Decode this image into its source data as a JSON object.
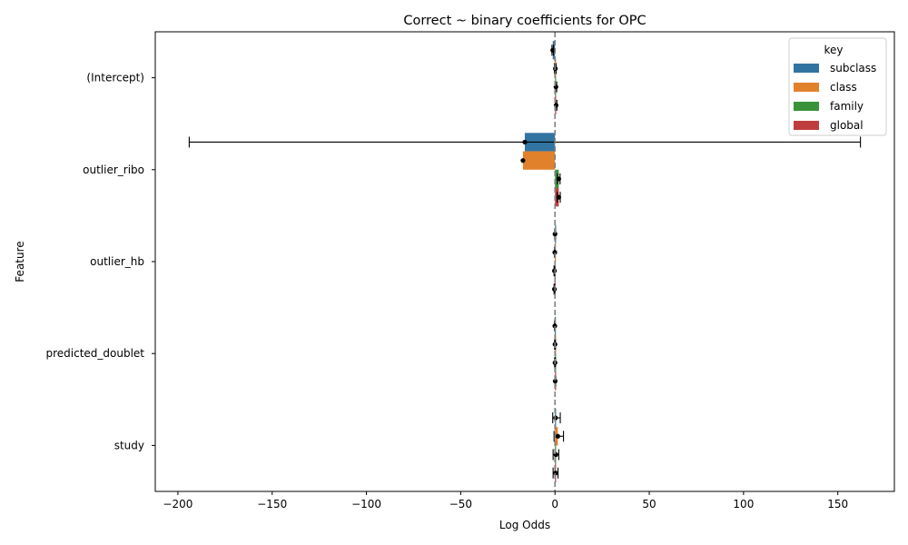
{
  "chart_data": {
    "type": "bar",
    "orientation": "horizontal",
    "title": "Correct ~ binary coefficients for OPC",
    "xlabel": "Log Odds",
    "ylabel": "Feature",
    "xlim": [
      -212,
      180
    ],
    "xticks": [
      -200,
      -150,
      -100,
      -50,
      0,
      50,
      100,
      150
    ],
    "xtick_labels": [
      "−200",
      "−150",
      "−100",
      "−50",
      "0",
      "50",
      "100",
      "150"
    ],
    "categories": [
      "(Intercept)",
      "outlier_ribo",
      "outlier_hb",
      "predicted_doublet",
      "study"
    ],
    "zero_line": {
      "x": 0,
      "style": "dashed",
      "color": "#808080"
    },
    "legend": {
      "title": "key",
      "position": "top-right"
    },
    "series": [
      {
        "name": "subclass",
        "color": "#3274a1",
        "values": [
          -1.2,
          -16,
          0,
          -0.1,
          0.3
        ],
        "ci_low": [
          -1.6,
          -194,
          -0.2,
          -0.3,
          -1.2
        ],
        "ci_high": [
          -0.8,
          162,
          0.2,
          0.1,
          2.8
        ]
      },
      {
        "name": "class",
        "color": "#e1812c",
        "values": [
          0.2,
          -17,
          -0.1,
          0,
          1.5
        ],
        "ci_low": [
          -0.3,
          -17,
          -0.3,
          -0.2,
          -0.5
        ],
        "ci_high": [
          0.6,
          -17,
          0.1,
          0.2,
          4.5
        ]
      },
      {
        "name": "family",
        "color": "#3a923a",
        "values": [
          0.5,
          2,
          -0.3,
          0,
          0.5
        ],
        "ci_low": [
          0.1,
          1.3,
          -0.5,
          -0.2,
          -1.0
        ],
        "ci_high": [
          0.9,
          2.7,
          -0.1,
          0.2,
          2.0
        ]
      },
      {
        "name": "global",
        "color": "#c03d3e",
        "values": [
          0.6,
          2,
          -0.3,
          0.1,
          0.3
        ],
        "ci_low": [
          0.2,
          1.2,
          -0.5,
          -0.1,
          -1.0
        ],
        "ci_high": [
          1.0,
          2.8,
          -0.1,
          0.3,
          1.6
        ]
      }
    ]
  }
}
